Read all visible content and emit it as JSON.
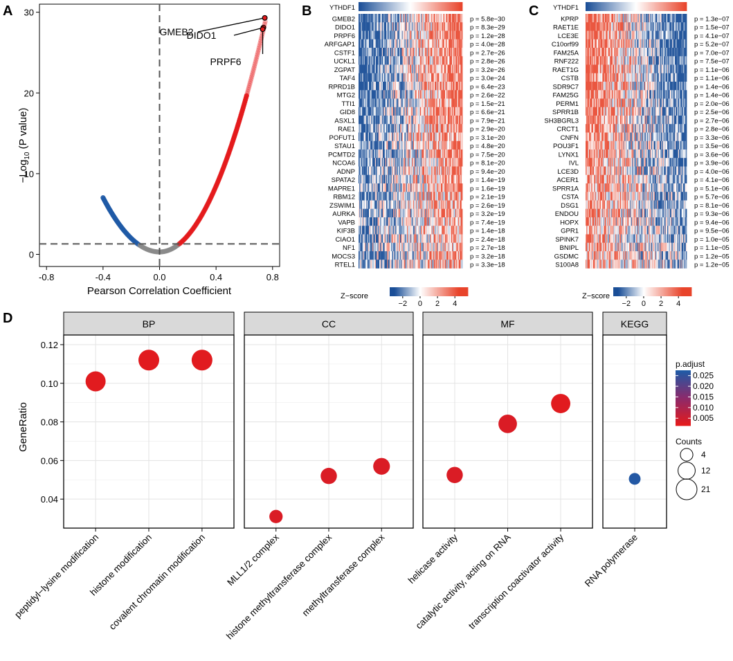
{
  "panels": {
    "a": "A",
    "b": "B",
    "c": "C",
    "d": "D"
  },
  "colors": {
    "red": "#E41A1C",
    "blue": "#1F5AA6",
    "gray": "#C8C8C8",
    "strip": "#D9D9D9",
    "heat_low": "#1A4E97",
    "heat_mid": "#FFFFFF",
    "heat_high": "#E8442B"
  },
  "chart_data": [
    {
      "type": "scatter",
      "panel": "A",
      "title": "",
      "xlabel": "Pearson Correlation Coefficient",
      "ylabel_pre": "−Log",
      "ylabel_sub": "10",
      "ylabel_post": " (P value)",
      "xlim": [
        -0.85,
        0.85
      ],
      "ylim": [
        -1.5,
        31
      ],
      "xticks": [
        "-0.8",
        "-0.4",
        "0.0",
        "0.4",
        "0.8"
      ],
      "xtick_values": [
        -0.8,
        -0.4,
        0.0,
        0.4,
        0.8
      ],
      "yticks": [
        "0",
        "10",
        "20",
        "30"
      ],
      "ytick_values": [
        0,
        10,
        20,
        30
      ],
      "vline_x": 0,
      "hline_y": 1.3,
      "curve": {
        "neg_min_x": -0.4,
        "pos_max_x": 0.75,
        "sig_threshold": 0.14
      },
      "highlights": [
        {
          "label": "GMEB2",
          "x": 0.745,
          "y": 29.3
        },
        {
          "label": "DIDO1",
          "x": 0.735,
          "y": 28.1
        },
        {
          "label": "PRPF6",
          "x": 0.73,
          "y": 27.9
        }
      ]
    },
    {
      "type": "heatmap",
      "panel": "B",
      "header": "YTHDF1",
      "trend": "positive",
      "genes": [
        {
          "name": "GMEB2",
          "p": "p = 5.8e−30"
        },
        {
          "name": "DIDO1",
          "p": "p = 8.3e−29"
        },
        {
          "name": "PRPF6",
          "p": "p = 1.2e−28"
        },
        {
          "name": "ARFGAP1",
          "p": "p = 4.0e−28"
        },
        {
          "name": "CSTF1",
          "p": "p = 2.7e−26"
        },
        {
          "name": "UCKL1",
          "p": "p = 2.8e−26"
        },
        {
          "name": "ZGPAT",
          "p": "p = 3.2e−26"
        },
        {
          "name": "TAF4",
          "p": "p = 3.0e−24"
        },
        {
          "name": "RPRD1B",
          "p": "p = 6.4e−23"
        },
        {
          "name": "MTG2",
          "p": "p = 2.6e−22"
        },
        {
          "name": "TTI1",
          "p": "p = 1.5e−21"
        },
        {
          "name": "GID8",
          "p": "p = 6.6e−21"
        },
        {
          "name": "ASXL1",
          "p": "p = 7.9e−21"
        },
        {
          "name": "RAE1",
          "p": "p = 2.9e−20"
        },
        {
          "name": "POFUT1",
          "p": "p = 3.1e−20"
        },
        {
          "name": "STAU1",
          "p": "p = 4.8e−20"
        },
        {
          "name": "PCMTD2",
          "p": "p = 7.5e−20"
        },
        {
          "name": "NCOA6",
          "p": "p = 8.1e−20"
        },
        {
          "name": "ADNP",
          "p": "p = 9.4e−20"
        },
        {
          "name": "SPATA2",
          "p": "p = 1.4e−19"
        },
        {
          "name": "MAPRE1",
          "p": "p = 1.6e−19"
        },
        {
          "name": "RBM12",
          "p": "p = 2.1e−19"
        },
        {
          "name": "ZSWIM1",
          "p": "p = 2.6e−19"
        },
        {
          "name": "AURKA",
          "p": "p = 3.2e−19"
        },
        {
          "name": "VAPB",
          "p": "p = 7.4e−19"
        },
        {
          "name": "KIF3B",
          "p": "p = 1.4e−18"
        },
        {
          "name": "CIAO1",
          "p": "p = 2.4e−18"
        },
        {
          "name": "NF1",
          "p": "p = 2.7e−18"
        },
        {
          "name": "MOCS3",
          "p": "p = 3.2e−18"
        },
        {
          "name": "RTEL1",
          "p": "p = 3.3e−18"
        }
      ],
      "legend_title": "Z−score",
      "legend_ticks": [
        "−2",
        "0",
        "2",
        "4"
      ],
      "legend_values": [
        -2,
        0,
        2,
        4
      ],
      "legend_range": [
        -3.5,
        5.5
      ]
    },
    {
      "type": "heatmap",
      "panel": "C",
      "header": "YTHDF1",
      "trend": "negative",
      "genes": [
        {
          "name": "KPRP",
          "p": "p = 1.3e−07"
        },
        {
          "name": "RAET1E",
          "p": "p = 1.5e−07"
        },
        {
          "name": "LCE3E",
          "p": "p = 4.1e−07"
        },
        {
          "name": "C10orf99",
          "p": "p = 5.2e−07"
        },
        {
          "name": "FAM25A",
          "p": "p = 7.0e−07"
        },
        {
          "name": "RNF222",
          "p": "p = 7.5e−07"
        },
        {
          "name": "RAET1G",
          "p": "p = 1.1e−06"
        },
        {
          "name": "CSTB",
          "p": "p = 1.1e−06"
        },
        {
          "name": "SDR9C7",
          "p": "p = 1.4e−06"
        },
        {
          "name": "FAM25G",
          "p": "p = 1.4e−06"
        },
        {
          "name": "PERM1",
          "p": "p = 2.0e−06"
        },
        {
          "name": "SPRR1B",
          "p": "p = 2.5e−06"
        },
        {
          "name": "SH3BGRL3",
          "p": "p = 2.7e−06"
        },
        {
          "name": "CRCT1",
          "p": "p = 2.8e−06"
        },
        {
          "name": "CNFN",
          "p": "p = 3.3e−06"
        },
        {
          "name": "POU3F1",
          "p": "p = 3.5e−06"
        },
        {
          "name": "LYNX1",
          "p": "p = 3.6e−06"
        },
        {
          "name": "IVL",
          "p": "p = 3.9e−06"
        },
        {
          "name": "LCE3D",
          "p": "p = 4.0e−06"
        },
        {
          "name": "ACER1",
          "p": "p = 4.1e−06"
        },
        {
          "name": "SPRR1A",
          "p": "p = 5.1e−06"
        },
        {
          "name": "CSTA",
          "p": "p = 5.7e−06"
        },
        {
          "name": "DSG1",
          "p": "p = 8.1e−06"
        },
        {
          "name": "ENDOU",
          "p": "p = 9.3e−06"
        },
        {
          "name": "HOPX",
          "p": "p = 9.4e−06"
        },
        {
          "name": "GPR1",
          "p": "p = 9.5e−06"
        },
        {
          "name": "SPINK7",
          "p": "p = 1.0e−05"
        },
        {
          "name": "BNIPL",
          "p": "p = 1.1e−05"
        },
        {
          "name": "GSDMC",
          "p": "p = 1.2e−05"
        },
        {
          "name": "S100A8",
          "p": "p = 1.2e−05"
        }
      ],
      "legend_title": "Z−score",
      "legend_ticks": [
        "−2",
        "0",
        "2",
        "4"
      ],
      "legend_values": [
        -2,
        0,
        2,
        4
      ],
      "legend_range": [
        -3.5,
        5.5
      ]
    },
    {
      "type": "scatter",
      "panel": "D",
      "ylabel": "GeneRatio",
      "ylim": [
        0.025,
        0.125
      ],
      "yticks": [
        "0.04",
        "0.06",
        "0.08",
        "0.10",
        "0.12"
      ],
      "ytick_values": [
        0.04,
        0.06,
        0.08,
        0.1,
        0.12
      ],
      "facets": [
        {
          "name": "BP",
          "terms": [
            {
              "label": "peptidyl−lysine modification",
              "ratio": 0.101,
              "count": 19,
              "padj": 0.002
            },
            {
              "label": "histone modification",
              "ratio": 0.112,
              "count": 21,
              "padj": 0.002
            },
            {
              "label": "covalent chromatin modification",
              "ratio": 0.112,
              "count": 21,
              "padj": 0.002
            }
          ]
        },
        {
          "name": "CC",
          "terms": [
            {
              "label": "MLL1/2 complex",
              "ratio": 0.031,
              "count": 5,
              "padj": 0.003
            },
            {
              "label": "histone methyltransferase complex",
              "ratio": 0.052,
              "count": 10,
              "padj": 0.003
            },
            {
              "label": "methyltransferase complex",
              "ratio": 0.057,
              "count": 11,
              "padj": 0.003
            }
          ]
        },
        {
          "name": "MF",
          "terms": [
            {
              "label": "helicase activity",
              "ratio": 0.0525,
              "count": 10,
              "padj": 0.003
            },
            {
              "label": "catalytic activity, acting on RNA",
              "ratio": 0.079,
              "count": 15,
              "padj": 0.003
            },
            {
              "label": "transcription coactivator activity",
              "ratio": 0.0895,
              "count": 17,
              "padj": 0.002
            }
          ]
        },
        {
          "name": "KEGG",
          "terms": [
            {
              "label": "RNA polymerase",
              "ratio": 0.0505,
              "count": 3,
              "padj": 0.027
            }
          ]
        }
      ],
      "legend_color_title": "p.adjust",
      "legend_color_ticks": [
        "0.025",
        "0.020",
        "0.015",
        "0.010",
        "0.005"
      ],
      "legend_color_values": [
        0.025,
        0.02,
        0.015,
        0.01,
        0.005
      ],
      "legend_color_range": [
        0.0015,
        0.0275
      ],
      "legend_size_title": "Counts",
      "legend_size_labels": [
        "4",
        "12",
        "21"
      ],
      "legend_size_values": [
        4,
        12,
        21
      ]
    }
  ]
}
